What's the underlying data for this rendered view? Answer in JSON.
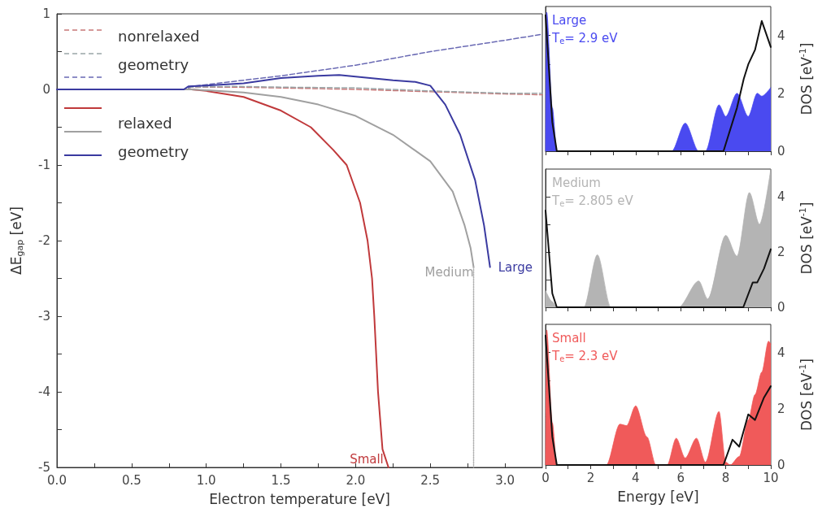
{
  "chart_data": [
    {
      "type": "line",
      "xlabel": "Electron temperature [eV]",
      "ylabel": "ΔE$_{gap}$ [eV]",
      "marker": "none",
      "grid": false,
      "xlim": [
        0,
        3.25
      ],
      "xticks": [
        {
          "value": 0,
          "label": "0.0"
        },
        {
          "value": 0.25,
          "label": null
        },
        {
          "value": 0.5,
          "label": "0.5"
        },
        {
          "value": 0.75,
          "label": null
        },
        {
          "value": 1,
          "label": "1.0"
        },
        {
          "value": 1.25,
          "label": null
        },
        {
          "value": 1.5,
          "label": "1.5"
        },
        {
          "value": 1.75,
          "label": null
        },
        {
          "value": 2,
          "label": "2.0"
        },
        {
          "value": 2.25,
          "label": null
        },
        {
          "value": 2.5,
          "label": "2.5"
        },
        {
          "value": 2.75,
          "label": null
        },
        {
          "value": 3,
          "label": "3.0"
        }
      ],
      "ylim": [
        -5,
        1
      ],
      "yticks": [
        -5,
        {
          "value": -4.5,
          "label": null
        },
        -4,
        {
          "value": -3.5,
          "label": null
        },
        -3,
        {
          "value": -2.5,
          "label": null
        },
        -2,
        {
          "value": -1.5,
          "label": null
        },
        -1,
        {
          "value": -0.5,
          "label": null
        },
        0,
        {
          "value": 0.5,
          "label": null
        },
        1
      ],
      "annotations": [
        "nonrelaxed\ngeometry",
        "relaxed\ngeometry"
      ],
      "series": [
        {
          "color": "#c87878",
          "line_style": "dashed",
          "x": [
            0,
            0.85,
            0.9,
            1.2,
            1.5,
            2,
            2.5,
            3,
            3.25
          ],
          "values": [
            0,
            0,
            0.03,
            0.03,
            0.02,
            0,
            -0.03,
            -0.06,
            -0.07
          ]
        },
        {
          "color": "#9aa6a8",
          "line_style": "dashed",
          "x": [
            0,
            0.85,
            0.9,
            1.2,
            1.5,
            2,
            2.5,
            3,
            3.25
          ],
          "values": [
            0,
            0,
            0.03,
            0.04,
            0.03,
            0.02,
            -0.02,
            -0.05,
            -0.05
          ]
        },
        {
          "color": "#6a6ab4",
          "line_style": "dashed",
          "x": [
            0,
            0.85,
            0.9,
            1.5,
            2,
            2.5,
            3,
            3.25
          ],
          "values": [
            0,
            0,
            0.04,
            0.18,
            0.32,
            0.5,
            0.65,
            0.73
          ]
        },
        {
          "name": "Small",
          "color": "#c0393b",
          "line_style": "solid",
          "x": [
            0,
            0.9,
            1,
            1.25,
            1.5,
            1.7,
            1.85,
            1.94,
            2.03,
            2.08,
            2.11,
            2.125,
            2.15,
            2.18,
            2.22
          ],
          "values": [
            0,
            0,
            -0.02,
            -0.1,
            -0.28,
            -0.5,
            -0.8,
            -1,
            -1.5,
            -2,
            -2.5,
            -3,
            -4,
            -4.76,
            -5
          ]
        },
        {
          "name": "Medium",
          "color": "#a0a0a0",
          "line_style": "solid",
          "x": [
            0,
            0.9,
            1.25,
            1.5,
            1.75,
            2,
            2.25,
            2.5,
            2.65,
            2.73,
            2.77,
            2.79
          ],
          "values": [
            0,
            0,
            -0.04,
            -0.1,
            -0.2,
            -0.35,
            -0.6,
            -0.95,
            -1.35,
            -1.8,
            -2.1,
            -2.35
          ]
        },
        {
          "name": "Large",
          "color": "#3a3aa0",
          "line_style": "solid",
          "x": [
            0,
            0.85,
            0.88,
            1,
            1.25,
            1.5,
            1.75,
            1.89,
            2,
            2.25,
            2.4,
            2.5,
            2.6,
            2.7,
            2.8,
            2.86,
            2.9
          ],
          "values": [
            0,
            0,
            0.04,
            0.05,
            0.08,
            0.15,
            0.18,
            0.19,
            0.17,
            0.12,
            0.1,
            0.05,
            -0.2,
            -0.6,
            -1.2,
            -1.8,
            -2.35
          ]
        },
        {
          "color": "#b0b0b0",
          "line_style": "dotted",
          "x": [
            2.79,
            2.79
          ],
          "values": [
            -2.35,
            -5
          ]
        }
      ]
    },
    {
      "type": "area",
      "ylabel": "DOS [eV$^{-1}$]",
      "marker": "none",
      "grid": false,
      "tick_labels": "y",
      "xlim": [
        0,
        10
      ],
      "xticks": [
        0,
        {
          "value": 1,
          "label": null
        },
        2,
        {
          "value": 3,
          "label": null
        },
        4,
        {
          "value": 5,
          "label": null
        },
        6,
        {
          "value": 7,
          "label": null
        },
        8,
        {
          "value": 9,
          "label": null
        },
        10
      ],
      "ylim": [
        0,
        5
      ],
      "yticks": [
        0,
        {
          "value": 1,
          "label": null
        },
        2,
        {
          "value": 3,
          "label": null
        },
        4
      ],
      "annotations": [
        "Large\nT$_{e}$= 2.9 eV"
      ],
      "series": [
        {
          "color": "#4a4af0",
          "x": [
            0,
            0.05,
            0.3,
            0.5,
            5.6,
            6.2,
            6.8,
            7.1,
            7.7,
            8,
            8.5,
            9,
            9.4,
            9.6,
            10
          ],
          "values": [
            0,
            4.8,
            1.5,
            0,
            0,
            0.97,
            0,
            0,
            1.6,
            1.2,
            2,
            1.2,
            2,
            1.9,
            2.2
          ]
        },
        {
          "type": "line",
          "color": "#111111",
          "x": [
            0,
            0.3,
            0.5,
            7.9,
            8.5,
            8.8,
            9,
            9.3,
            9.6,
            10
          ],
          "values": [
            4.7,
            1,
            0,
            0,
            1.5,
            2.5,
            3,
            3.5,
            4.5,
            3.6
          ]
        }
      ]
    },
    {
      "type": "area",
      "ylabel": "DOS [eV$^{-1}$]",
      "marker": "none",
      "grid": false,
      "tick_labels": "y",
      "xlim": [
        0,
        10
      ],
      "xticks": [
        0,
        {
          "value": 1,
          "label": null
        },
        2,
        {
          "value": 3,
          "label": null
        },
        4,
        {
          "value": 5,
          "label": null
        },
        6,
        {
          "value": 7,
          "label": null
        },
        8,
        {
          "value": 9,
          "label": null
        },
        10
      ],
      "ylim": [
        0,
        5
      ],
      "yticks": [
        0,
        {
          "value": 1,
          "label": null
        },
        2,
        {
          "value": 3,
          "label": null
        },
        4
      ],
      "annotations": [
        "Medium\nT$_{e}$= 2.805 eV"
      ],
      "series": [
        {
          "color": "#b4b4b4",
          "x": [
            0,
            0.3,
            0.5,
            1.7,
            2.3,
            2.9,
            5.9,
            6.8,
            7.2,
            8,
            8.5,
            9.05,
            9.5,
            10
          ],
          "values": [
            0.6,
            0.2,
            0,
            0,
            1.9,
            0,
            0,
            0.95,
            0.3,
            2.6,
            1.85,
            4.15,
            3,
            5
          ]
        },
        {
          "type": "line",
          "color": "#111111",
          "x": [
            0,
            0.3,
            0.5,
            8.78,
            9.2,
            9.4,
            9.7,
            10
          ],
          "values": [
            3.5,
            0.5,
            0,
            0,
            0.9,
            0.9,
            1.4,
            2.1
          ]
        }
      ]
    },
    {
      "type": "area",
      "xlabel": "Energy [eV]",
      "ylabel": "DOS [eV$^{-1}$]",
      "marker": "none",
      "grid": false,
      "xlim": [
        0,
        10
      ],
      "xticks": [
        0,
        {
          "value": 1,
          "label": null
        },
        2,
        {
          "value": 3,
          "label": null
        },
        4,
        {
          "value": 5,
          "label": null
        },
        6,
        {
          "value": 7,
          "label": null
        },
        8,
        {
          "value": 9,
          "label": null
        },
        10
      ],
      "ylim": [
        0,
        5
      ],
      "yticks": [
        0,
        {
          "value": 1,
          "label": null
        },
        2,
        {
          "value": 3,
          "label": null
        },
        4
      ],
      "annotations": [
        "Small\nT$_{e}$= 2.3 eV"
      ],
      "series": [
        {
          "color": "#f05a5a",
          "x": [
            0,
            0.05,
            0.3,
            0.5,
            2.7,
            3.3,
            3.6,
            4,
            4.5,
            4.9,
            5.4,
            5.8,
            6.2,
            6.7,
            7.1,
            7.7,
            8,
            8.2,
            8.6,
            9,
            9.3,
            9.6,
            9.9,
            10
          ],
          "values": [
            0,
            4.8,
            1.5,
            0,
            0,
            1.45,
            1.4,
            2.1,
            1,
            0,
            0,
            0.95,
            0.25,
            0.95,
            0.1,
            1.9,
            0.1,
            0,
            0.3,
            1.6,
            2.5,
            3.3,
            4.4,
            4.3
          ]
        },
        {
          "type": "line",
          "color": "#111111",
          "x": [
            0,
            0.3,
            0.5,
            7.9,
            8.3,
            8.6,
            9,
            9.3,
            9.7,
            10
          ],
          "values": [
            4.6,
            1,
            0,
            0,
            0.9,
            0.65,
            1.8,
            1.6,
            2.4,
            2.8
          ]
        }
      ]
    }
  ]
}
